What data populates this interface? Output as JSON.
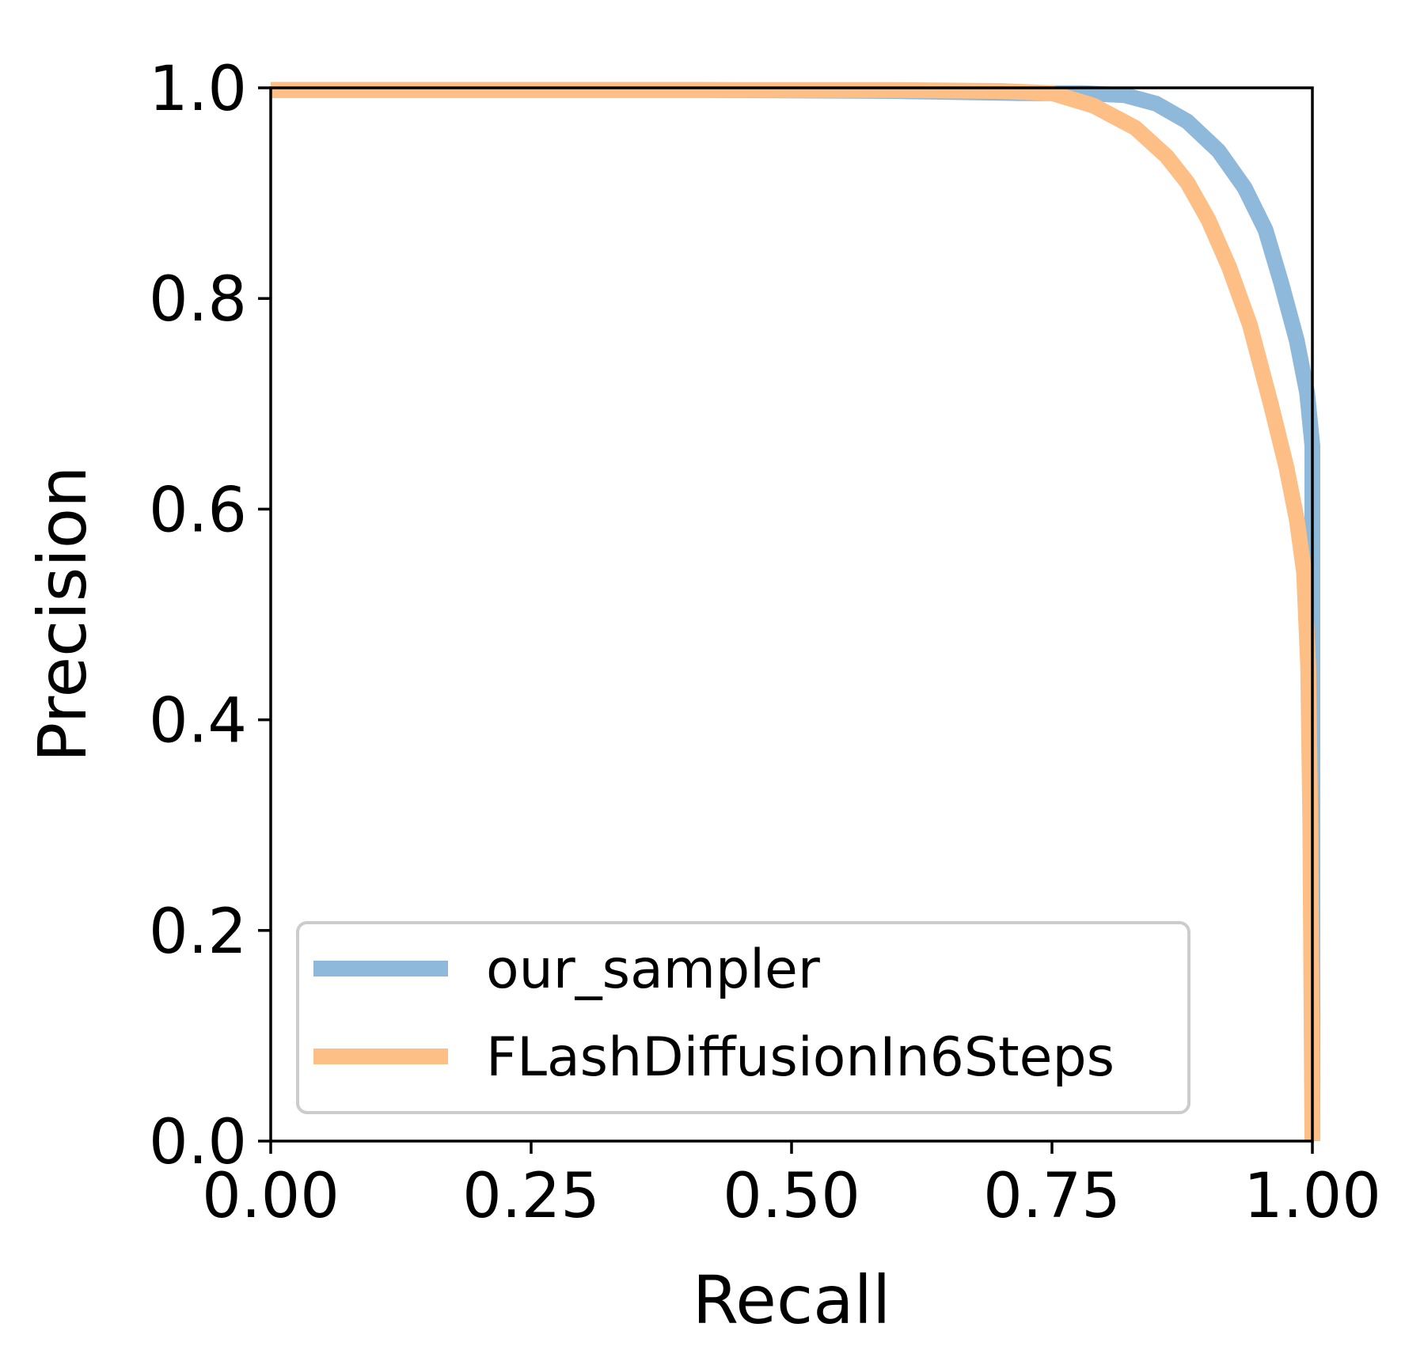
{
  "chart_data": {
    "type": "line",
    "title": "",
    "xlabel": "Recall",
    "ylabel": "Precision",
    "xlim": [
      0,
      1
    ],
    "ylim": [
      0,
      1
    ],
    "xticks": [
      "0.00",
      "0.25",
      "0.50",
      "0.75",
      "1.00"
    ],
    "yticks": [
      "0.0",
      "0.2",
      "0.4",
      "0.6",
      "0.8",
      "1.0"
    ],
    "grid": false,
    "legend_position": "lower-left",
    "series": [
      {
        "name": "our_sampler",
        "color": "#8fb9da",
        "x": [
          0,
          0.2,
          0.4,
          0.6,
          0.72,
          0.78,
          0.82,
          0.85,
          0.88,
          0.91,
          0.935,
          0.955,
          0.97,
          0.985,
          0.995,
          1.0,
          1.0,
          1.0
        ],
        "y": [
          0.998,
          0.998,
          0.998,
          0.997,
          0.995,
          0.995,
          0.993,
          0.985,
          0.968,
          0.94,
          0.905,
          0.865,
          0.815,
          0.76,
          0.71,
          0.66,
          0.3,
          0.0
        ]
      },
      {
        "name": "FLashDiffusionIn6Steps",
        "color": "#fdbf86",
        "x": [
          0,
          0.2,
          0.4,
          0.6,
          0.7,
          0.75,
          0.79,
          0.83,
          0.86,
          0.88,
          0.9,
          0.92,
          0.94,
          0.96,
          0.975,
          0.985,
          0.992,
          0.996,
          0.998,
          1.0
        ],
        "y": [
          0.998,
          0.998,
          0.998,
          0.998,
          0.997,
          0.995,
          0.983,
          0.962,
          0.935,
          0.91,
          0.875,
          0.83,
          0.775,
          0.7,
          0.64,
          0.59,
          0.54,
          0.45,
          0.3,
          0.0
        ]
      }
    ]
  }
}
